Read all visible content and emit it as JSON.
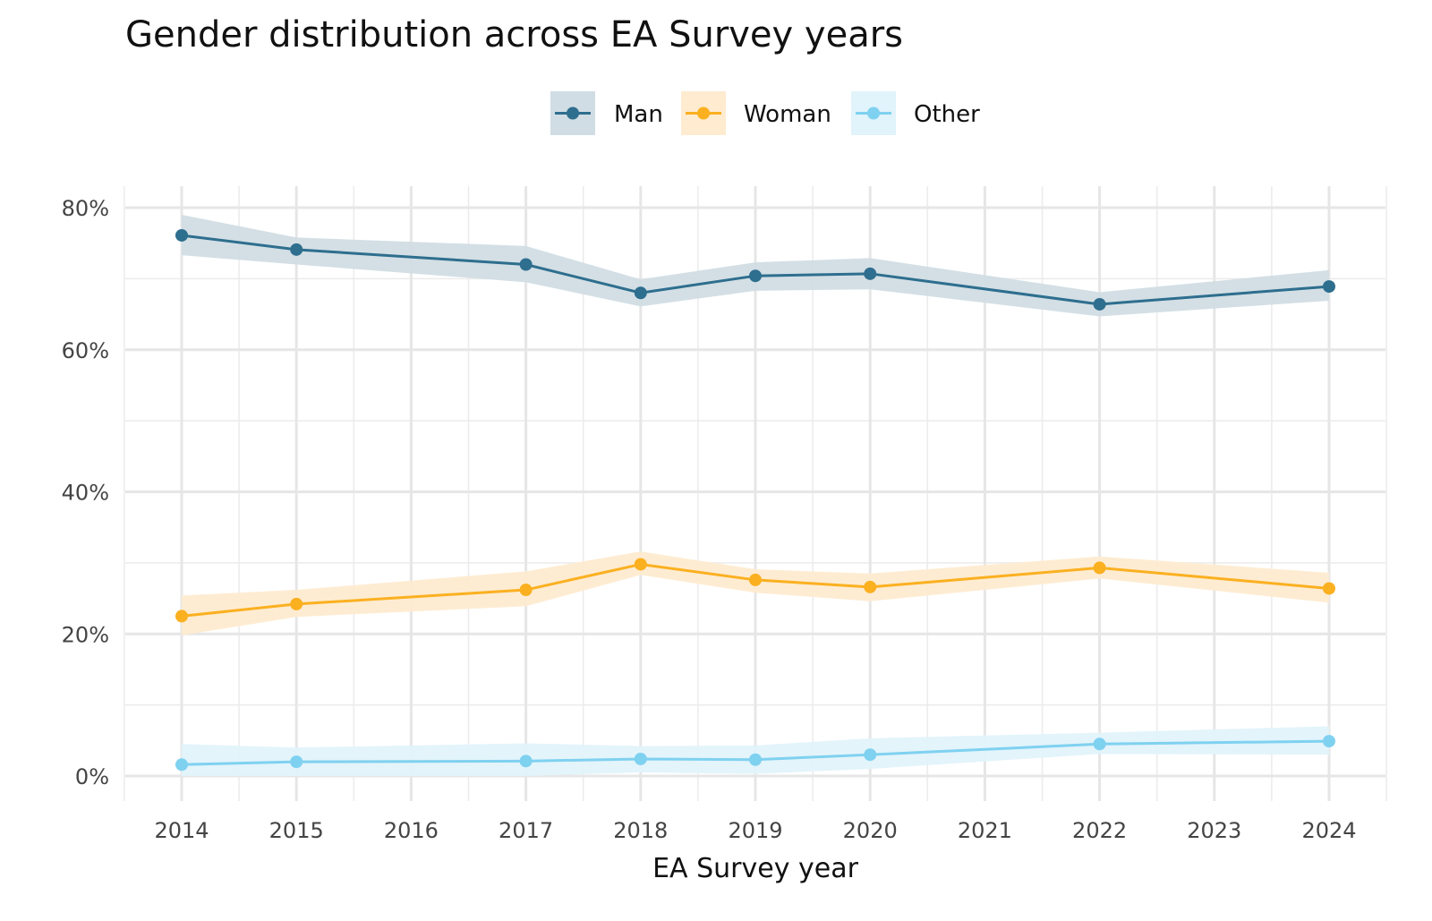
{
  "chart_data": {
    "type": "line",
    "title": "Gender distribution across EA Survey years",
    "xlabel": "EA Survey year",
    "ylabel": "",
    "x_ticks": [
      "2014",
      "2015",
      "2016",
      "2017",
      "2018",
      "2019",
      "2020",
      "2021",
      "2022",
      "2023",
      "2024"
    ],
    "x_range": [
      2014,
      2024
    ],
    "y_ticks": [
      "0%",
      "20%",
      "40%",
      "60%",
      "80%"
    ],
    "y_tick_values": [
      0,
      20,
      40,
      60,
      80
    ],
    "ylim": [
      0,
      80
    ],
    "grid": true,
    "legend_position": "top-center",
    "x": [
      2014,
      2015,
      2017,
      2018,
      2019,
      2020,
      2022,
      2024
    ],
    "series": [
      {
        "name": "Man",
        "color": "#2e6e8e",
        "ribbon_color": "#d1dde4",
        "values": [
          76.1,
          74.1,
          72.0,
          68.0,
          70.4,
          70.7,
          66.4,
          68.9
        ],
        "lower": [
          73.3,
          72.0,
          69.5,
          66.1,
          68.3,
          68.5,
          64.7,
          66.9
        ],
        "upper": [
          79.0,
          75.8,
          74.6,
          69.9,
          72.3,
          72.9,
          68.1,
          71.2
        ]
      },
      {
        "name": "Woman",
        "color": "#fbb020",
        "ribbon_color": "#feebd0",
        "values": [
          22.5,
          24.2,
          26.2,
          29.8,
          27.6,
          26.6,
          29.3,
          26.4
        ],
        "lower": [
          19.8,
          22.4,
          23.9,
          28.3,
          25.8,
          24.6,
          27.8,
          24.4
        ],
        "upper": [
          25.4,
          26.2,
          28.8,
          31.6,
          29.1,
          28.5,
          30.9,
          28.6
        ]
      },
      {
        "name": "Other",
        "color": "#7fd1f0",
        "ribbon_color": "#e1f3fb",
        "values": [
          1.6,
          2.0,
          2.1,
          2.4,
          2.3,
          3.0,
          4.5,
          4.9
        ],
        "lower": [
          0.0,
          0.0,
          0.0,
          0.5,
          0.3,
          1.0,
          3.1,
          3.0
        ],
        "upper": [
          4.5,
          4.0,
          4.6,
          4.2,
          4.3,
          5.3,
          6.1,
          7.0
        ]
      }
    ]
  }
}
